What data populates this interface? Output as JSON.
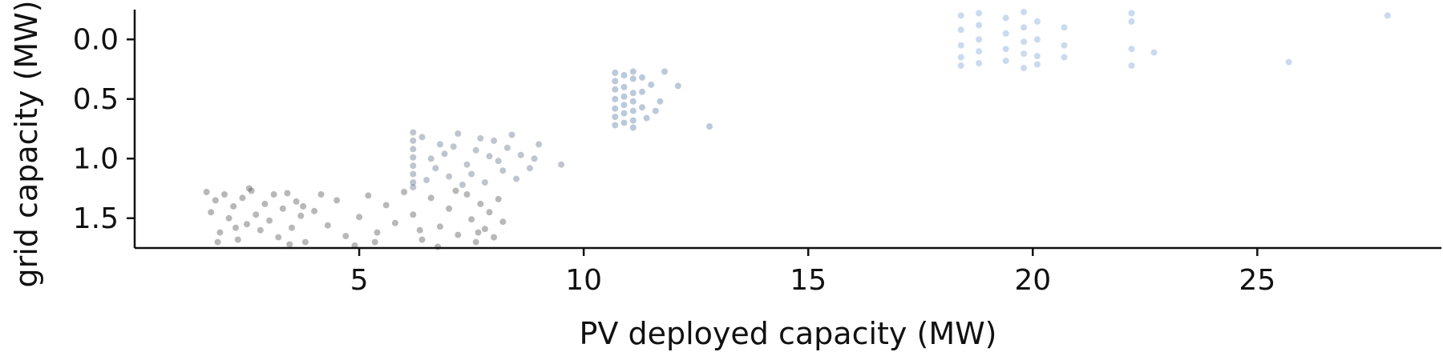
{
  "chart_data": {
    "type": "scatter",
    "title": "",
    "xlabel": "PV deployed capacity (MW)",
    "ylabel": "grid capacity (MW)",
    "xlim": [
      0,
      29.1
    ],
    "ylim": [
      1.75,
      -0.25
    ],
    "y_inverted": true,
    "x_ticks": [
      5,
      10,
      15,
      20,
      25
    ],
    "x_tick_labels": [
      "5",
      "10",
      "15",
      "20",
      "25"
    ],
    "y_ticks": [
      0.0,
      0.5,
      1.0,
      1.5
    ],
    "y_tick_labels": [
      "0.0",
      "0.5",
      "1.0",
      "1.5"
    ],
    "grid": false,
    "legend": "none",
    "series": [
      {
        "color": "#4d4d4d",
        "y_range": [
          1.25,
          1.75
        ],
        "x_range": [
          1.5,
          8.3
        ],
        "points": [
          [
            1.6,
            1.28
          ],
          [
            1.7,
            1.45
          ],
          [
            1.8,
            1.35
          ],
          [
            1.9,
            1.62
          ],
          [
            2.0,
            1.3
          ],
          [
            2.1,
            1.5
          ],
          [
            2.2,
            1.4
          ],
          [
            2.3,
            1.68
          ],
          [
            2.4,
            1.33
          ],
          [
            2.5,
            1.55
          ],
          [
            2.6,
            1.27
          ],
          [
            2.7,
            1.47
          ],
          [
            2.8,
            1.6
          ],
          [
            2.9,
            1.38
          ],
          [
            3.0,
            1.52
          ],
          [
            3.1,
            1.3
          ],
          [
            3.2,
            1.66
          ],
          [
            3.3,
            1.42
          ],
          [
            3.4,
            1.29
          ],
          [
            3.5,
            1.58
          ],
          [
            3.6,
            1.36
          ],
          [
            3.7,
            1.48
          ],
          [
            3.8,
            1.7
          ],
          [
            4.0,
            1.44
          ],
          [
            4.3,
            1.56
          ],
          [
            4.5,
            1.35
          ],
          [
            4.7,
            1.65
          ],
          [
            4.9,
            1.73
          ],
          [
            5.0,
            1.49
          ],
          [
            5.2,
            1.31
          ],
          [
            5.4,
            1.62
          ],
          [
            5.6,
            1.39
          ],
          [
            5.8,
            1.54
          ],
          [
            6.0,
            1.28
          ],
          [
            6.2,
            1.47
          ],
          [
            6.4,
            1.68
          ],
          [
            6.6,
            1.33
          ],
          [
            6.8,
            1.57
          ],
          [
            7.0,
            1.42
          ],
          [
            7.2,
            1.64
          ],
          [
            7.4,
            1.3
          ],
          [
            7.5,
            1.51
          ],
          [
            7.6,
            1.7
          ],
          [
            7.7,
            1.38
          ],
          [
            7.8,
            1.59
          ],
          [
            7.9,
            1.45
          ],
          [
            8.0,
            1.66
          ],
          [
            8.1,
            1.34
          ],
          [
            8.2,
            1.53
          ],
          [
            1.85,
            1.7
          ],
          [
            2.55,
            1.25
          ],
          [
            3.45,
            1.72
          ],
          [
            4.15,
            1.3
          ],
          [
            5.35,
            1.7
          ],
          [
            6.35,
            1.6
          ],
          [
            6.75,
            1.74
          ],
          [
            7.15,
            1.27
          ],
          [
            7.65,
            1.62
          ],
          [
            2.25,
            1.58
          ],
          [
            3.75,
            1.4
          ]
        ]
      },
      {
        "color": "#5e6e84",
        "y_range": [
          0.75,
          1.25
        ],
        "x_range": [
          6.2,
          9.6
        ],
        "points": [
          [
            6.2,
            0.78
          ],
          [
            6.2,
            0.85
          ],
          [
            6.2,
            0.92
          ],
          [
            6.2,
            0.99
          ],
          [
            6.2,
            1.06
          ],
          [
            6.2,
            1.13
          ],
          [
            6.2,
            1.2
          ],
          [
            6.2,
            1.24
          ],
          [
            6.4,
            0.82
          ],
          [
            6.6,
            1.0
          ],
          [
            6.8,
            0.88
          ],
          [
            7.0,
            1.15
          ],
          [
            7.2,
            0.79
          ],
          [
            7.4,
            1.05
          ],
          [
            7.6,
            0.93
          ],
          [
            7.8,
            1.2
          ],
          [
            8.0,
            0.85
          ],
          [
            8.2,
            1.1
          ],
          [
            8.4,
            0.8
          ],
          [
            8.6,
            0.97
          ],
          [
            8.8,
            1.08
          ],
          [
            9.0,
            0.88
          ],
          [
            9.5,
            1.05
          ],
          [
            6.5,
            1.18
          ],
          [
            6.9,
            0.96
          ],
          [
            7.3,
            1.22
          ],
          [
            7.7,
            0.83
          ],
          [
            8.1,
            1.02
          ],
          [
            8.3,
            0.91
          ],
          [
            6.7,
            1.08
          ],
          [
            7.1,
            0.9
          ],
          [
            7.5,
            1.13
          ],
          [
            7.9,
            0.98
          ],
          [
            8.5,
            1.17
          ],
          [
            8.9,
            1.0
          ]
        ]
      },
      {
        "color": "#5577a5",
        "y_range": [
          0.25,
          0.75
        ],
        "x_range": [
          10.6,
          12.8
        ],
        "points": [
          [
            10.7,
            0.28
          ],
          [
            10.7,
            0.35
          ],
          [
            10.7,
            0.42
          ],
          [
            10.7,
            0.5
          ],
          [
            10.7,
            0.58
          ],
          [
            10.7,
            0.65
          ],
          [
            10.7,
            0.72
          ],
          [
            10.9,
            0.3
          ],
          [
            10.9,
            0.4
          ],
          [
            10.9,
            0.48
          ],
          [
            10.9,
            0.55
          ],
          [
            10.9,
            0.62
          ],
          [
            10.9,
            0.7
          ],
          [
            11.1,
            0.27
          ],
          [
            11.1,
            0.33
          ],
          [
            11.1,
            0.45
          ],
          [
            11.1,
            0.52
          ],
          [
            11.1,
            0.6
          ],
          [
            11.1,
            0.68
          ],
          [
            11.1,
            0.74
          ],
          [
            11.3,
            0.32
          ],
          [
            11.3,
            0.44
          ],
          [
            11.3,
            0.57
          ],
          [
            11.5,
            0.38
          ],
          [
            11.7,
            0.52
          ],
          [
            11.8,
            0.27
          ],
          [
            12.1,
            0.39
          ],
          [
            12.8,
            0.73
          ],
          [
            11.6,
            0.6
          ],
          [
            11.4,
            0.66
          ]
        ]
      },
      {
        "color": "#7aa2d8",
        "y_range": [
          -0.25,
          0.25
        ],
        "x_range": [
          18.3,
          28.0
        ],
        "points": [
          [
            18.4,
            -0.2
          ],
          [
            18.4,
            -0.08
          ],
          [
            18.4,
            0.05
          ],
          [
            18.4,
            0.15
          ],
          [
            18.4,
            0.22
          ],
          [
            18.8,
            -0.22
          ],
          [
            18.8,
            -0.12
          ],
          [
            18.8,
            0.0
          ],
          [
            18.8,
            0.1
          ],
          [
            18.8,
            0.2
          ],
          [
            19.4,
            -0.18
          ],
          [
            19.4,
            -0.05
          ],
          [
            19.4,
            0.08
          ],
          [
            19.4,
            0.18
          ],
          [
            19.8,
            -0.23
          ],
          [
            19.8,
            -0.1
          ],
          [
            19.8,
            0.02
          ],
          [
            19.8,
            0.12
          ],
          [
            19.8,
            0.24
          ],
          [
            20.1,
            -0.15
          ],
          [
            20.1,
            0.0
          ],
          [
            20.1,
            0.14
          ],
          [
            20.1,
            0.21
          ],
          [
            20.7,
            -0.1
          ],
          [
            20.7,
            0.05
          ],
          [
            20.7,
            0.15
          ],
          [
            22.2,
            -0.22
          ],
          [
            22.2,
            -0.15
          ],
          [
            22.2,
            0.08
          ],
          [
            22.2,
            0.22
          ],
          [
            22.7,
            0.11
          ],
          [
            25.7,
            0.19
          ],
          [
            27.9,
            -0.2
          ]
        ]
      }
    ]
  }
}
